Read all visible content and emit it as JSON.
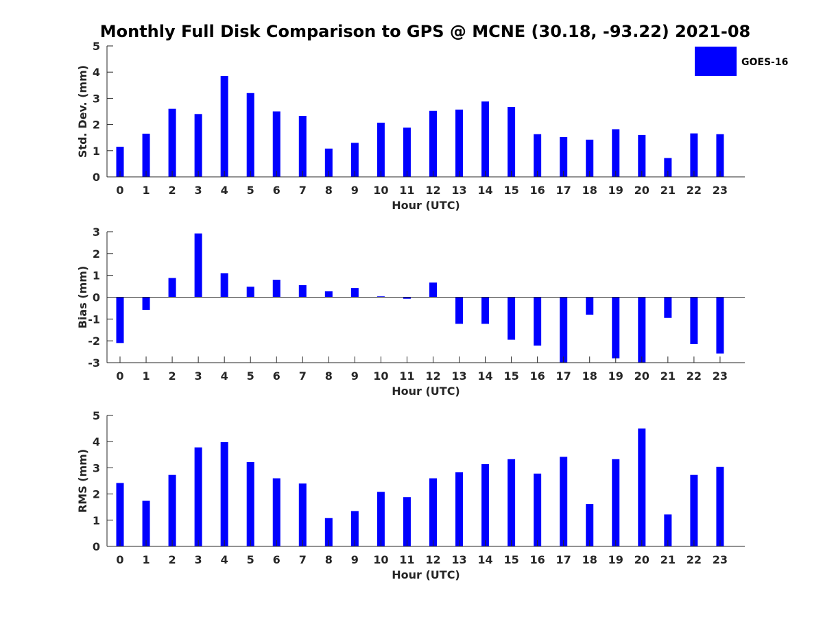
{
  "title": "Monthly Full Disk Comparison to GPS @ MCNE (30.18, -93.22) 2021-08",
  "legend": {
    "label": "GOES-16",
    "color": "#0000ff",
    "placement": "top-right"
  },
  "chart_data": [
    {
      "type": "bar",
      "name": "std",
      "xlabel": "Hour (UTC)",
      "ylabel": "Std. Dev. (mm)",
      "ylim": [
        0,
        5
      ],
      "yticks": [
        0,
        1,
        2,
        3,
        4,
        5
      ],
      "categories": [
        "0",
        "1",
        "2",
        "3",
        "4",
        "5",
        "6",
        "7",
        "8",
        "9",
        "10",
        "11",
        "12",
        "13",
        "14",
        "15",
        "16",
        "17",
        "18",
        "19",
        "20",
        "21",
        "22",
        "23"
      ],
      "series": [
        {
          "name": "GOES-16",
          "color": "#0000ff",
          "values": [
            1.15,
            1.65,
            2.6,
            2.4,
            3.85,
            3.2,
            2.5,
            2.33,
            1.08,
            1.3,
            2.07,
            1.88,
            2.52,
            2.57,
            2.88,
            2.67,
            1.63,
            1.52,
            1.42,
            1.82,
            1.6,
            0.72,
            1.66,
            1.63
          ]
        }
      ]
    },
    {
      "type": "bar",
      "name": "bias",
      "xlabel": "Hour (UTC)",
      "ylabel": "Bias (mm)",
      "ylim": [
        -3,
        3
      ],
      "yticks": [
        -3,
        -2,
        -1,
        0,
        1,
        2,
        3
      ],
      "categories": [
        "0",
        "1",
        "2",
        "3",
        "4",
        "5",
        "6",
        "7",
        "8",
        "9",
        "10",
        "11",
        "12",
        "13",
        "14",
        "15",
        "16",
        "17",
        "18",
        "19",
        "20",
        "21",
        "22",
        "23"
      ],
      "series": [
        {
          "name": "GOES-16",
          "color": "#0000ff",
          "values": [
            -2.1,
            -0.58,
            0.88,
            2.92,
            1.1,
            0.48,
            0.8,
            0.55,
            0.27,
            0.42,
            0.04,
            -0.07,
            0.67,
            -1.22,
            -1.22,
            -1.95,
            -2.22,
            -3.0,
            -0.8,
            -2.8,
            -3.0,
            -0.95,
            -2.15,
            -2.58
          ]
        }
      ]
    },
    {
      "type": "bar",
      "name": "rms",
      "xlabel": "Hour (UTC)",
      "ylabel": "RMS (mm)",
      "ylim": [
        0,
        5
      ],
      "yticks": [
        0,
        1,
        2,
        3,
        4,
        5
      ],
      "categories": [
        "0",
        "1",
        "2",
        "3",
        "4",
        "5",
        "6",
        "7",
        "8",
        "9",
        "10",
        "11",
        "12",
        "13",
        "14",
        "15",
        "16",
        "17",
        "18",
        "19",
        "20",
        "21",
        "22",
        "23"
      ],
      "series": [
        {
          "name": "GOES-16",
          "color": "#0000ff",
          "values": [
            2.42,
            1.74,
            2.73,
            3.78,
            3.98,
            3.22,
            2.6,
            2.4,
            1.08,
            1.35,
            2.08,
            1.88,
            2.6,
            2.83,
            3.14,
            3.33,
            2.78,
            3.42,
            1.62,
            3.33,
            4.5,
            1.22,
            2.73,
            3.04
          ]
        }
      ]
    }
  ]
}
